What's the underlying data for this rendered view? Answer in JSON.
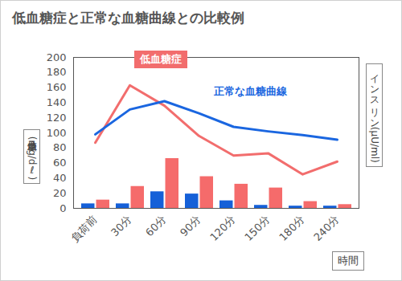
{
  "chart_data": {
    "type": "line",
    "title": "低血糖症と正常な血糖曲線との比較例",
    "x_label": "時間",
    "y_label": "血糖値 (mg/dℓ)",
    "y2_label": "インスリン (μU/ml)",
    "categories": [
      "負荷前",
      "30分",
      "60分",
      "90分",
      "120分",
      "150分",
      "180分",
      "240分"
    ],
    "ylim": [
      0,
      200
    ],
    "yticks": [
      0,
      20,
      40,
      60,
      80,
      100,
      120,
      140,
      160,
      180,
      200
    ],
    "y2lim": [
      0,
      200
    ],
    "y2ticks": [],
    "grid": false,
    "series": [
      {
        "name": "低血糖症",
        "color": "#f26d6d",
        "values": [
          87,
          163,
          136,
          96,
          70,
          73,
          45,
          62
        ]
      },
      {
        "name": "正常な血糖曲線",
        "color": "#1a66e0",
        "values": [
          98,
          131,
          142,
          126,
          108,
          102,
          97,
          91
        ]
      },
      {
        "type": "bar",
        "axis": "y2",
        "color": "#1560d8",
        "values": [
          6,
          6,
          22,
          19,
          10,
          4,
          3,
          3
        ]
      },
      {
        "type": "bar",
        "axis": "y2",
        "color": "#f56b6b",
        "values": [
          11,
          29,
          66,
          42,
          32,
          27,
          9,
          5
        ]
      }
    ]
  }
}
